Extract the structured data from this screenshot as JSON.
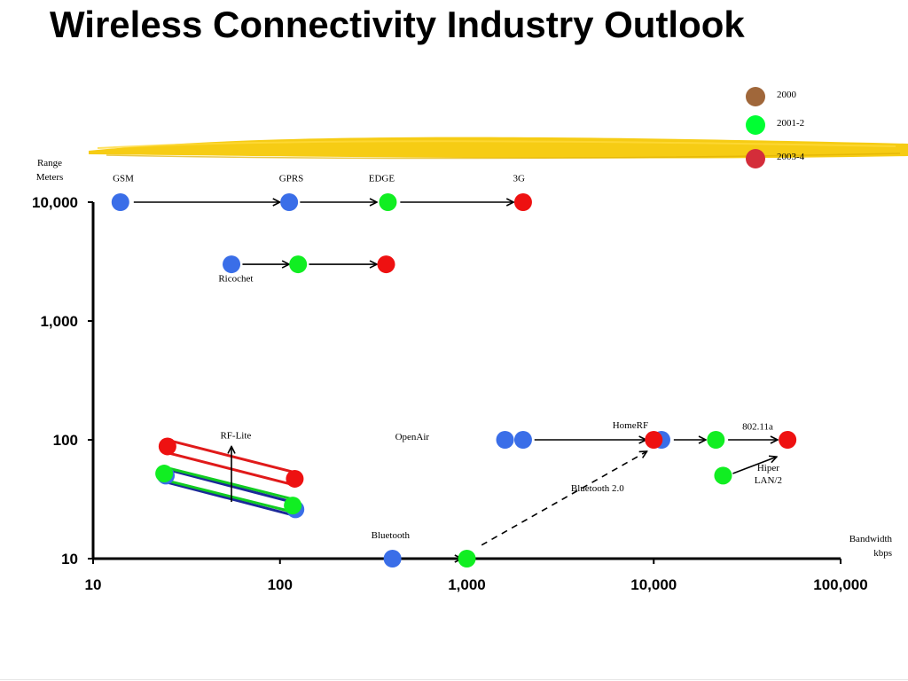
{
  "slide": {
    "title": "Wireless Connectivity Industry Outlook"
  },
  "chart_data": {
    "type": "scatter",
    "axes": {
      "x": {
        "label_lines": [
          "Bandwidth",
          "kbps"
        ],
        "scale": "log",
        "range": [
          10,
          100000
        ],
        "ticks": [
          10,
          100,
          1000,
          10000,
          100000
        ],
        "tick_labels": [
          "10",
          "100",
          "1,000",
          "10,000",
          "100,000"
        ]
      },
      "y": {
        "label_lines": [
          "Range",
          "Meters"
        ],
        "scale": "log",
        "range": [
          10,
          10000
        ],
        "ticks": [
          10,
          100,
          1000,
          10000
        ],
        "tick_labels": [
          "10",
          "100",
          "1,000",
          "10,000"
        ]
      }
    },
    "grid": false,
    "legend_position": "top-right",
    "series": [
      {
        "name": "2000",
        "color": "#a0673a"
      },
      {
        "name": "2001-2",
        "color": "#00ff33"
      },
      {
        "name": "2003-4",
        "color": "#d42d3a"
      }
    ],
    "colors": {
      "blue": "#3a6ee8",
      "green": "#11ee22",
      "red": "#ee1111",
      "highlighter": "#f5c800"
    },
    "labels": [
      {
        "text": "GSM",
        "x": 14.5,
        "y": 15000
      },
      {
        "text": "GPRS",
        "x": 115,
        "y": 15000
      },
      {
        "text": "EDGE",
        "x": 350,
        "y": 15000
      },
      {
        "text": "3G",
        "x": 1900,
        "y": 15000
      },
      {
        "text": "Ricochet",
        "x": 58,
        "y": 2150
      },
      {
        "text": "RF-Lite",
        "x": 58,
        "y": 103
      },
      {
        "text": "OpenAir",
        "x": 510,
        "y": 100
      },
      {
        "text": "HomeRF",
        "x": 7500,
        "y": 125
      },
      {
        "text": "802.11a",
        "x": 36000,
        "y": 122
      },
      {
        "text": "Hiper",
        "x": 41000,
        "y": 55
      },
      {
        "text": "LAN/2",
        "x": 41000,
        "y": 43
      },
      {
        "text": "Bluetooth 2.0",
        "x": 5000,
        "y": 37
      },
      {
        "text": "Bluetooth",
        "x": 390,
        "y": 14.8
      }
    ],
    "points": [
      {
        "id": "gsm",
        "x": 14,
        "y": 10000,
        "color": "blue"
      },
      {
        "id": "gprs-2000",
        "x": 112,
        "y": 10000,
        "color": "blue"
      },
      {
        "id": "edge",
        "x": 378,
        "y": 10000,
        "color": "green"
      },
      {
        "id": "3g",
        "x": 2000,
        "y": 10000,
        "color": "red"
      },
      {
        "id": "ricochet-2000",
        "x": 55,
        "y": 3000,
        "color": "blue"
      },
      {
        "id": "ricochet-2001",
        "x": 125,
        "y": 3000,
        "color": "green"
      },
      {
        "id": "ricochet-2003",
        "x": 370,
        "y": 3000,
        "color": "red"
      },
      {
        "id": "rflite-2000-a",
        "x": 24.5,
        "y": 50,
        "color": "blue"
      },
      {
        "id": "rflite-2001-a",
        "x": 24,
        "y": 52,
        "color": "green"
      },
      {
        "id": "rflite-2003-a",
        "x": 25,
        "y": 88,
        "color": "red"
      },
      {
        "id": "rflite-2000-b",
        "x": 121,
        "y": 26,
        "color": "blue"
      },
      {
        "id": "rflite-2001-b",
        "x": 117,
        "y": 28,
        "color": "green"
      },
      {
        "id": "rflite-2003-b",
        "x": 120,
        "y": 47,
        "color": "red"
      },
      {
        "id": "openair-a",
        "x": 1600,
        "y": 100,
        "color": "blue"
      },
      {
        "id": "openair-b",
        "x": 2000,
        "y": 100,
        "color": "blue"
      },
      {
        "id": "homerf-2000",
        "x": 11000,
        "y": 100,
        "color": "blue"
      },
      {
        "id": "homerf-2003",
        "x": 10000,
        "y": 100,
        "color": "red"
      },
      {
        "id": "homerf-2001",
        "x": 21500,
        "y": 100,
        "color": "green"
      },
      {
        "id": "80211a",
        "x": 52000,
        "y": 100,
        "color": "red"
      },
      {
        "id": "hiperlan2",
        "x": 23500,
        "y": 50,
        "color": "green"
      },
      {
        "id": "bluetooth-2000",
        "x": 400,
        "y": 10,
        "color": "blue"
      },
      {
        "id": "bluetooth-2001",
        "x": 1000,
        "y": 10,
        "color": "green"
      }
    ],
    "arrows": [
      {
        "from": [
          16.5,
          10000
        ],
        "to": [
          100,
          10000
        ],
        "style": "solid"
      },
      {
        "from": [
          128,
          10000
        ],
        "to": [
          330,
          10000
        ],
        "style": "solid"
      },
      {
        "from": [
          440,
          10000
        ],
        "to": [
          1780,
          10000
        ],
        "style": "solid"
      },
      {
        "from": [
          63,
          3000
        ],
        "to": [
          112,
          3000
        ],
        "style": "solid"
      },
      {
        "from": [
          143,
          3000
        ],
        "to": [
          330,
          3000
        ],
        "style": "solid"
      },
      {
        "from": [
          2300,
          100
        ],
        "to": [
          9100,
          100
        ],
        "style": "solid"
      },
      {
        "from": [
          12800,
          100
        ],
        "to": [
          19000,
          100
        ],
        "style": "solid"
      },
      {
        "from": [
          25000,
          100
        ],
        "to": [
          46000,
          100
        ],
        "style": "solid"
      },
      {
        "from": [
          26500,
          52
        ],
        "to": [
          45500,
          72
        ],
        "style": "solid"
      },
      {
        "from": [
          55,
          30
        ],
        "to": [
          55,
          88
        ],
        "style": "solid"
      },
      {
        "from": [
          1200,
          13
        ],
        "to": [
          9200,
          80
        ],
        "style": "dashed"
      },
      {
        "from": [
          440,
          10
        ],
        "to": [
          940,
          10
        ],
        "style": "solid"
      }
    ],
    "bands": [
      {
        "from": [
          24.5,
          50
        ],
        "to": [
          121,
          26
        ],
        "color": "#1c2a99"
      },
      {
        "from": [
          24,
          52
        ],
        "to": [
          117,
          28
        ],
        "color": "#11cc22"
      },
      {
        "from": [
          25,
          88
        ],
        "to": [
          120,
          47
        ],
        "color": "#e01a1a"
      }
    ]
  }
}
